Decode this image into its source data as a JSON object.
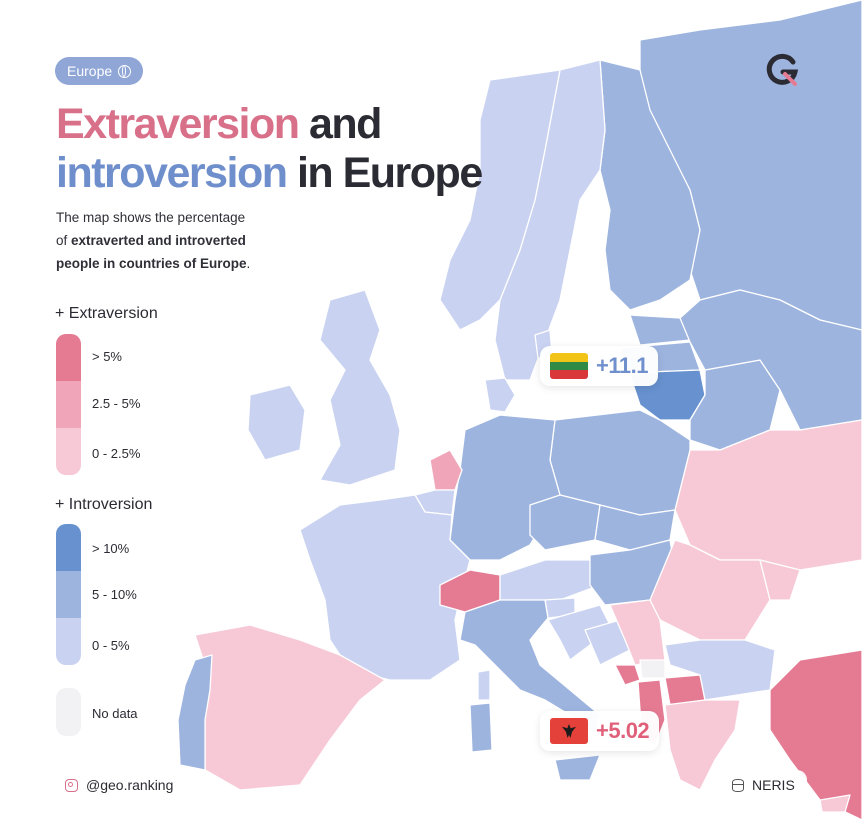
{
  "badge": {
    "label": "Europe",
    "icon": "globe-icon"
  },
  "title": {
    "part1_highlight": "Extraversion",
    "part1_rest": " and",
    "part2_highlight": "introversion",
    "part2_rest": " in Europe"
  },
  "description": {
    "line1": "The map shows the percentage",
    "line2_prefix": "of ",
    "line2_bold": "extraverted and introverted",
    "line3_bold": "people in countries of Europe",
    "line3_suffix": "."
  },
  "legend": {
    "extraversion": {
      "heading": "+ Extraversion",
      "items": [
        {
          "label": "> 5%",
          "color": "#e57a93"
        },
        {
          "label": "2.5 - 5%",
          "color": "#f0a5b9"
        },
        {
          "label": "0 - 2.5%",
          "color": "#f7c9d7"
        }
      ]
    },
    "introversion": {
      "heading": "+ Introversion",
      "items": [
        {
          "label": "> 10%",
          "color": "#6791cf"
        },
        {
          "label": "5 - 10%",
          "color": "#9db4df"
        },
        {
          "label": "0 - 5%",
          "color": "#c9d3f1"
        }
      ]
    },
    "no_data": {
      "label": "No data",
      "color": "#f2f2f4"
    }
  },
  "callouts": {
    "lithuania": {
      "value": "+11.1",
      "flag": "lithuania-flag"
    },
    "albania": {
      "value": "+5.02",
      "flag": "albania-flag"
    }
  },
  "footer": {
    "handle": "@geo.ranking",
    "handle_icon": "instagram-icon",
    "source": "NERIS",
    "source_icon": "database-icon"
  },
  "colors": {
    "extra_high": "#e57a93",
    "extra_mid": "#f0a5b9",
    "extra_low": "#f7c9d7",
    "intro_high": "#6791cf",
    "intro_mid": "#9db4df",
    "intro_low": "#c9d3f1"
  }
}
